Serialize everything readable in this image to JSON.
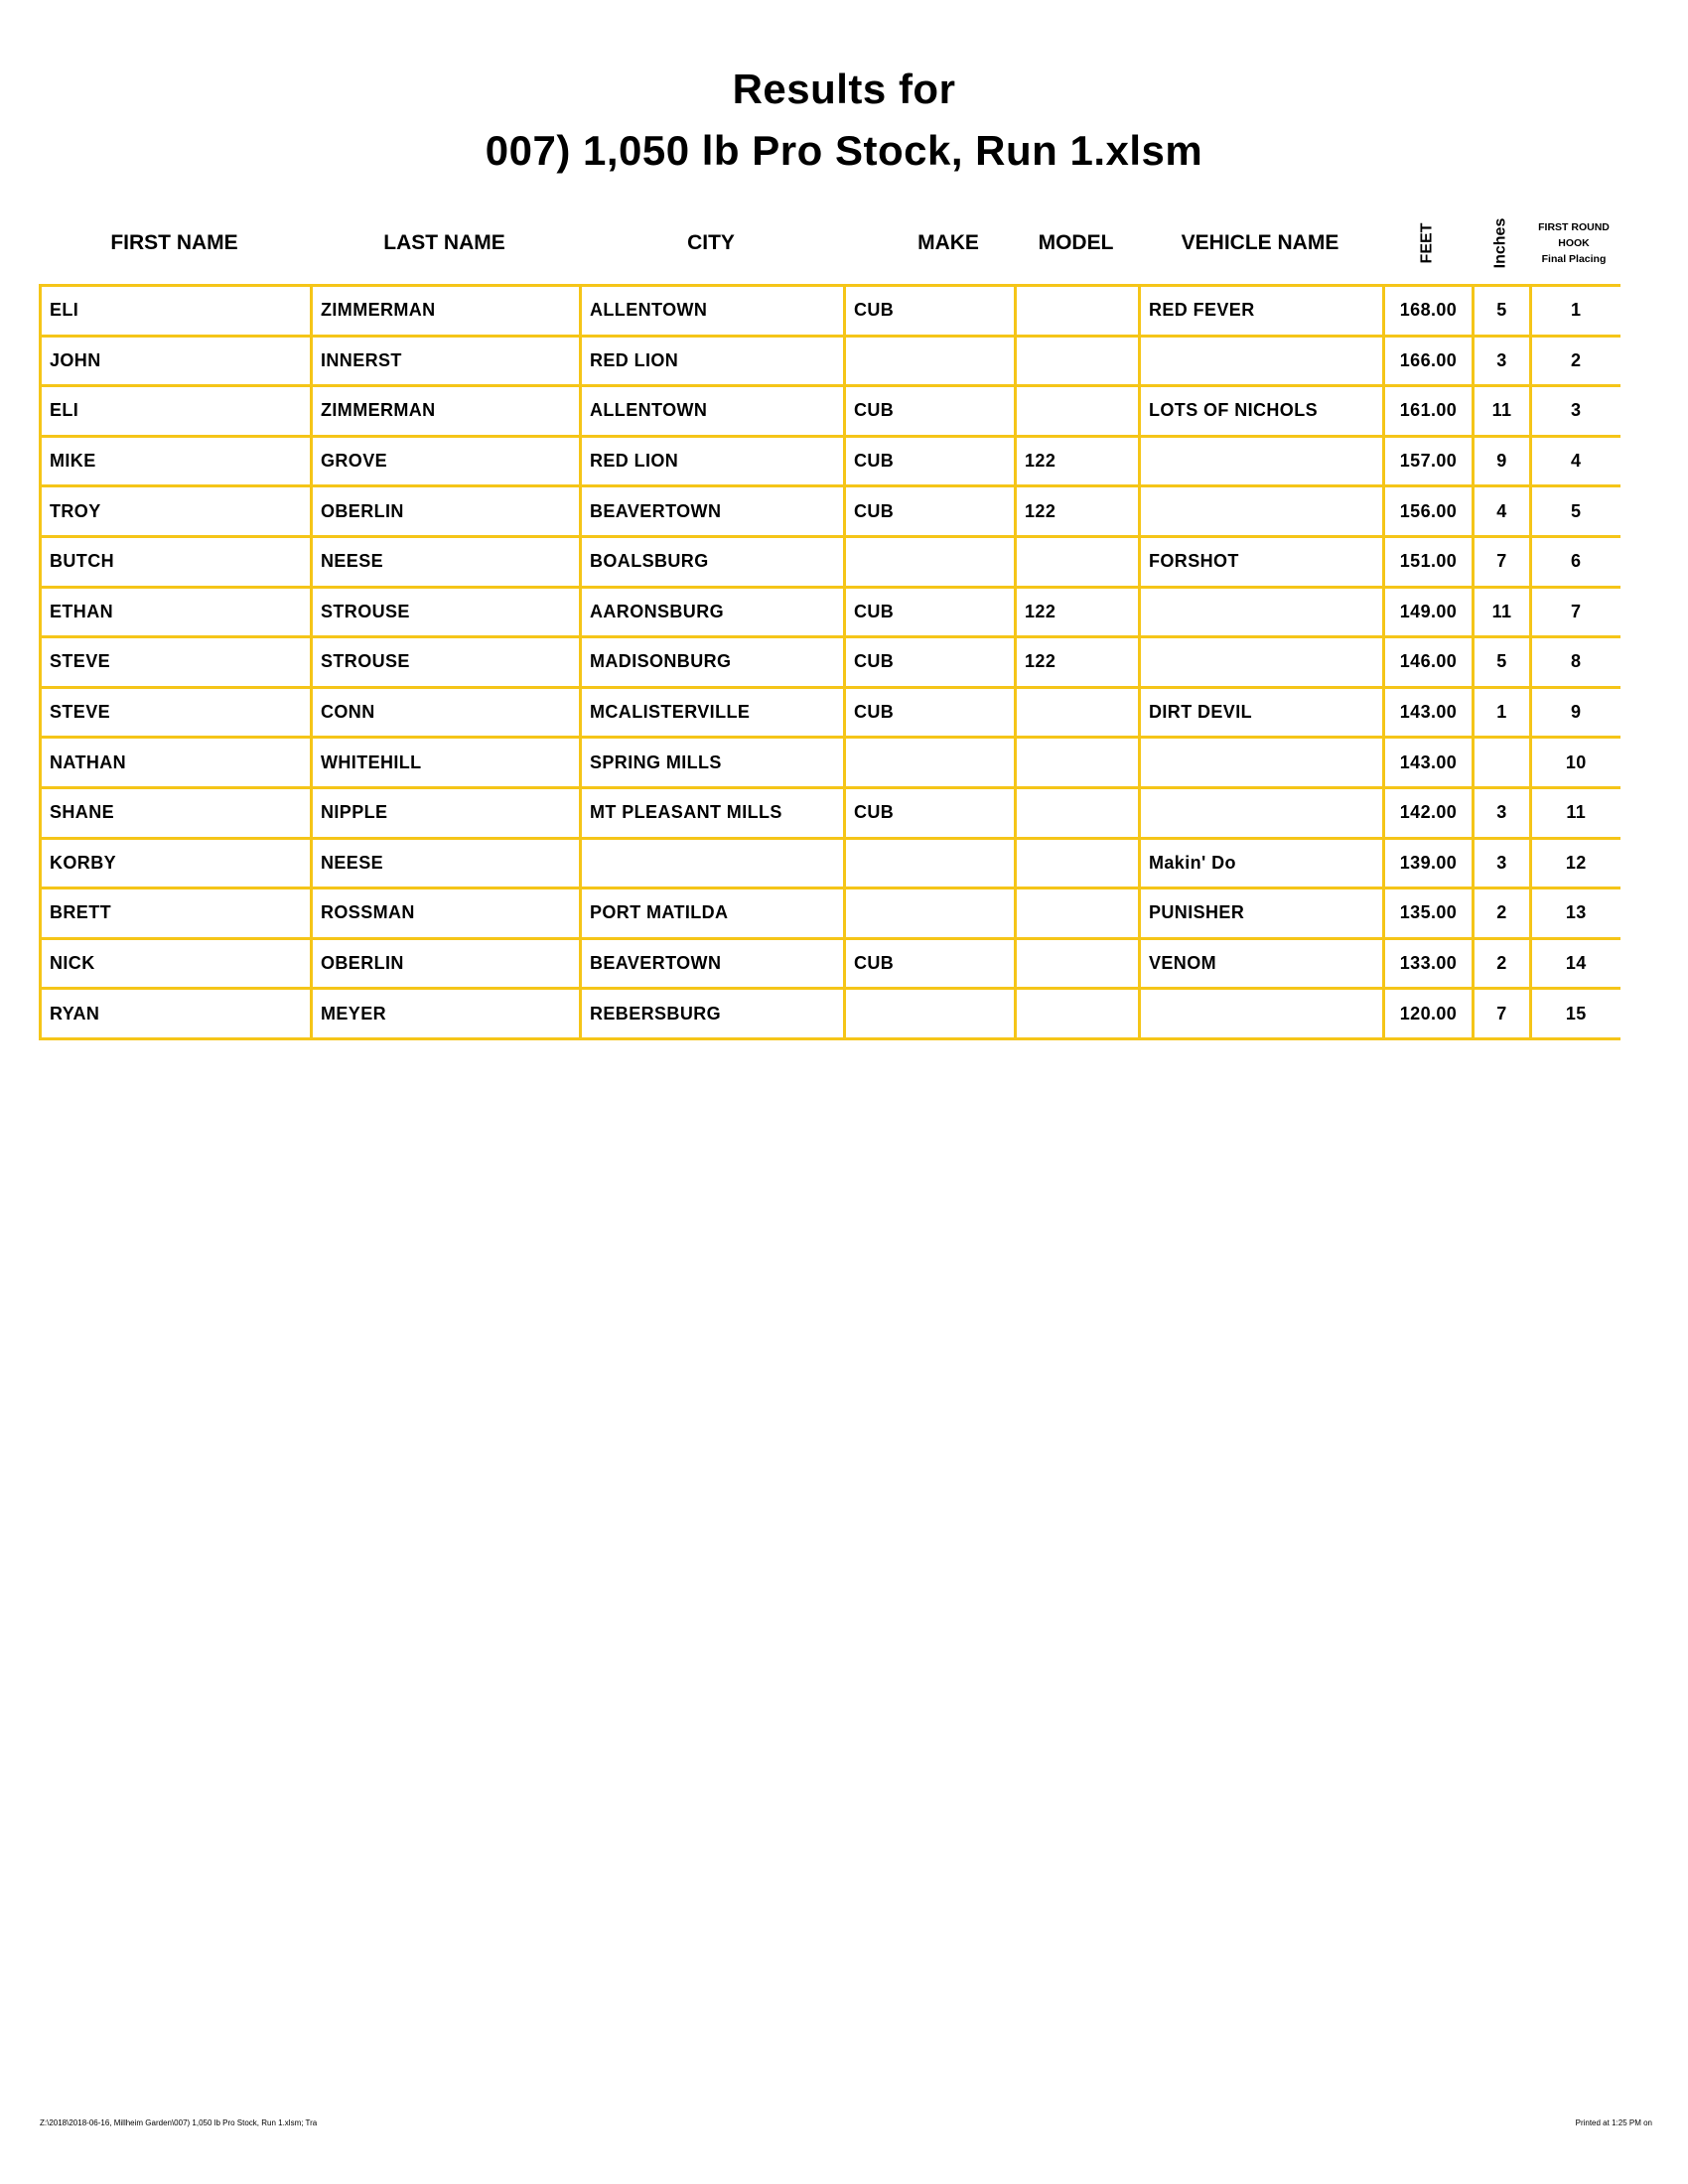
{
  "title_line1": "Results for",
  "title_line2": "007) 1,050 lb Pro Stock, Run 1.xlsm",
  "columns": [
    "FIRST NAME",
    "LAST NAME",
    "CITY",
    "MAKE",
    "MODEL",
    "VEHICLE NAME",
    "FEET",
    "Inches",
    "FIRST ROUND",
    "HOOK",
    "Final Placing"
  ],
  "rows": [
    [
      "ELI",
      "ZIMMERMAN",
      "ALLENTOWN",
      "CUB",
      "",
      "RED FEVER",
      "168.00",
      "5",
      "1"
    ],
    [
      "JOHN",
      "INNERST",
      "RED LION",
      "",
      "",
      "",
      "166.00",
      "3",
      "2"
    ],
    [
      "ELI",
      "ZIMMERMAN",
      "ALLENTOWN",
      "CUB",
      "",
      "LOTS OF NICHOLS",
      "161.00",
      "11",
      "3"
    ],
    [
      "MIKE",
      "GROVE",
      "RED LION",
      "CUB",
      "122",
      "",
      "157.00",
      "9",
      "4"
    ],
    [
      "TROY",
      "OBERLIN",
      "BEAVERTOWN",
      "CUB",
      "122",
      "",
      "156.00",
      "4",
      "5"
    ],
    [
      "BUTCH",
      "NEESE",
      "BOALSBURG",
      "",
      "",
      "FORSHOT",
      "151.00",
      "7",
      "6"
    ],
    [
      "ETHAN",
      "STROUSE",
      "AARONSBURG",
      "CUB",
      "122",
      "",
      "149.00",
      "11",
      "7"
    ],
    [
      "STEVE",
      "STROUSE",
      "MADISONBURG",
      "CUB",
      "122",
      "",
      "146.00",
      "5",
      "8"
    ],
    [
      "STEVE",
      "CONN",
      "MCALISTERVILLE",
      "CUB",
      "",
      "DIRT DEVIL",
      "143.00",
      "1",
      "9"
    ],
    [
      "NATHAN",
      "WHITEHILL",
      "SPRING MILLS",
      "",
      "",
      "",
      "143.00",
      "",
      "10"
    ],
    [
      "SHANE",
      "NIPPLE",
      "MT PLEASANT MILLS",
      "CUB",
      "",
      "",
      "142.00",
      "3",
      "11"
    ],
    [
      "KORBY",
      "NEESE",
      "",
      "",
      "",
      "Makin' Do",
      "139.00",
      "3",
      "12"
    ],
    [
      "BRETT",
      "ROSSMAN",
      "PORT MATILDA",
      "",
      "",
      "PUNISHER",
      "135.00",
      "2",
      "13"
    ],
    [
      "NICK",
      "OBERLIN",
      "BEAVERTOWN",
      "CUB",
      "",
      "VENOM",
      "133.00",
      "2",
      "14"
    ],
    [
      "RYAN",
      "MEYER",
      "REBERSBURG",
      "",
      "",
      "",
      "120.00",
      "7",
      "15"
    ]
  ],
  "footer_left": "Z:\\2018\\2018-06-16, Millheim Garden\\007) 1,050 lb Pro Stock, Run 1.xlsm; Tra",
  "footer_right": "Printed at 1:25 PM on",
  "colors": {
    "grid": "#F5C518"
  }
}
